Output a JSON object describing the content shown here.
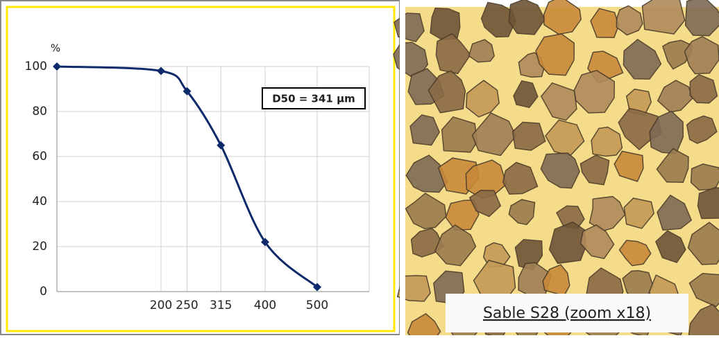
{
  "chart_data": {
    "type": "line",
    "y_label": "%",
    "annotation": "D50 = 341 µm",
    "x": [
      0,
      200,
      250,
      315,
      400,
      500
    ],
    "series": [
      {
        "color": "#0d2a6b",
        "values": [
          100,
          98,
          89,
          65,
          22,
          2
        ]
      }
    ],
    "xlim": [
      0,
      600
    ],
    "xticks": [
      200,
      250,
      315,
      400,
      500
    ],
    "ylim": [
      0,
      100
    ],
    "yticks": [
      0,
      20,
      40,
      60,
      80,
      100
    ],
    "grid": true
  },
  "photo": {
    "caption": "Sable S28 (zoom x18)"
  }
}
